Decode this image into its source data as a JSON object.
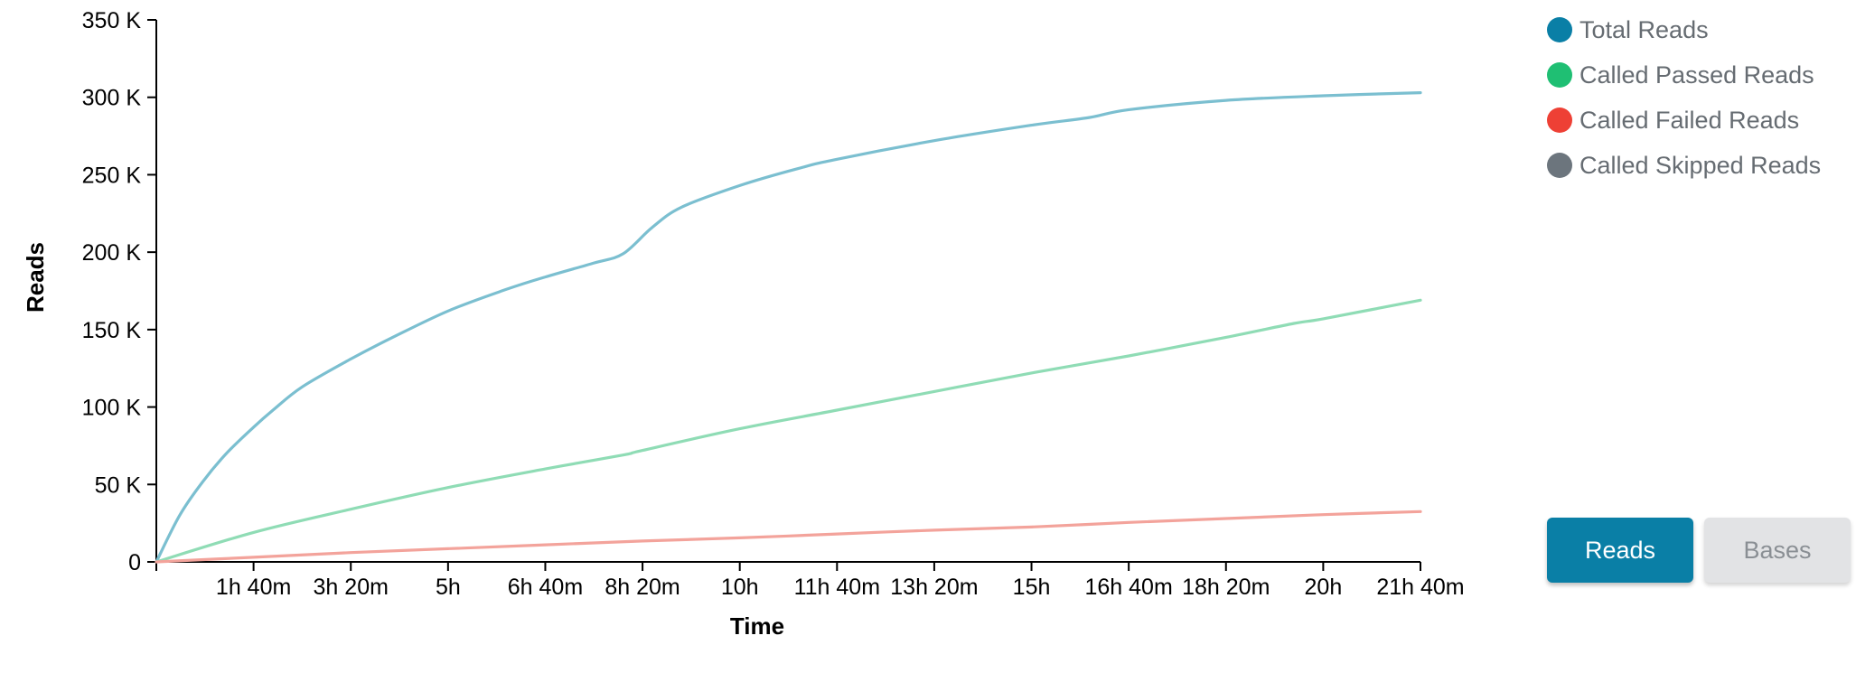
{
  "chart_data": {
    "type": "line",
    "xlabel": "Time",
    "ylabel": "Reads",
    "x_tick_labels": [
      "1h 40m",
      "3h 20m",
      "5h",
      "6h 40m",
      "8h 20m",
      "10h",
      "11h 40m",
      "13h 20m",
      "15h",
      "16h 40m",
      "18h 20m",
      "20h",
      "21h 40m"
    ],
    "x_tick_hours": [
      1.6667,
      3.3333,
      5,
      6.6667,
      8.3333,
      10,
      11.6667,
      13.3333,
      15,
      16.6667,
      18.3333,
      20,
      21.6667
    ],
    "x_units": "hours",
    "xlim": [
      0,
      21.6667
    ],
    "y_tick_labels": [
      "0",
      "50 K",
      "100 K",
      "150 K",
      "200 K",
      "250 K",
      "300 K",
      "350 K"
    ],
    "y_tick_values": [
      0,
      50000,
      100000,
      150000,
      200000,
      250000,
      300000,
      350000
    ],
    "ylim": [
      0,
      350000
    ],
    "grid": false,
    "legend_position": "top-right",
    "series": [
      {
        "name": "Total Reads",
        "color": "#7bbfd0",
        "x": [
          0,
          0.4,
          0.8,
          1.2,
          1.6667,
          2,
          2.5,
          3.3333,
          4,
          5,
          6,
          6.6667,
          7.5,
          8,
          8.5,
          9,
          10,
          11,
          11.6667,
          13.3333,
          15,
          16,
          16.6667,
          18.3333,
          20,
          21.6667
        ],
        "y": [
          0,
          30000,
          52000,
          70000,
          87000,
          98000,
          113000,
          131000,
          144000,
          162000,
          176000,
          184000,
          193000,
          199000,
          216000,
          229000,
          243000,
          254000,
          260000,
          272000,
          282000,
          287000,
          292000,
          298000,
          301000,
          303000
        ]
      },
      {
        "name": "Called Passed Reads",
        "color": "#8fdcb5",
        "x": [
          0,
          1.6667,
          3.3333,
          5,
          6.6667,
          8,
          8.3333,
          10,
          11.6667,
          13.3333,
          15,
          16.6667,
          18.3333,
          19.5,
          20,
          21.6667
        ],
        "y": [
          0,
          19000,
          34000,
          48000,
          60000,
          69000,
          72000,
          86000,
          98000,
          110000,
          122000,
          133000,
          145000,
          154000,
          157000,
          169000
        ]
      },
      {
        "name": "Called Failed Reads",
        "color": "#f3a39b",
        "x": [
          0,
          1.6667,
          3.3333,
          5,
          6.6667,
          8.3333,
          10,
          11.6667,
          13.3333,
          15,
          16.6667,
          18.3333,
          20,
          21.6667
        ],
        "y": [
          0,
          3000,
          6000,
          8500,
          11000,
          13500,
          15500,
          18000,
          20500,
          22500,
          25500,
          28000,
          30500,
          32500
        ]
      },
      {
        "name": "Called Skipped Reads",
        "color": "#6c757d",
        "x": [],
        "y": []
      }
    ]
  },
  "legend": [
    {
      "label": "Total Reads",
      "color": "#0a7fa6"
    },
    {
      "label": "Called Passed Reads",
      "color": "#1fbf73"
    },
    {
      "label": "Called Failed Reads",
      "color": "#ee4035"
    },
    {
      "label": "Called Skipped Reads",
      "color": "#6c757d"
    }
  ],
  "toggle": {
    "reads_label": "Reads",
    "bases_label": "Bases",
    "selected": "Reads"
  }
}
